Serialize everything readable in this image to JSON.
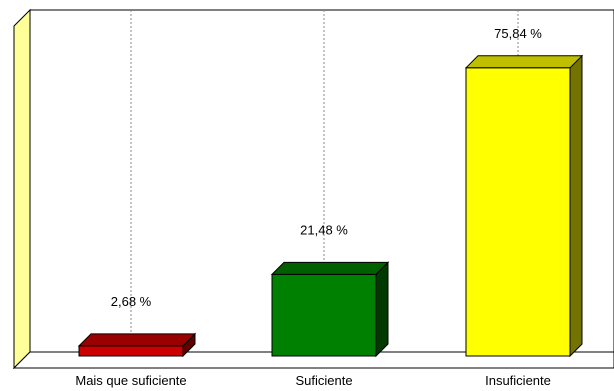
{
  "chart_data": {
    "type": "bar",
    "title": "",
    "xlabel": "",
    "ylabel": "",
    "ylim": [
      0,
      90
    ],
    "grid": "vertical-dotted",
    "legend": "none",
    "categories": [
      "Mais que suficiente",
      "Suficiente",
      "Insuficiente"
    ],
    "values": [
      2.68,
      21.48,
      75.84
    ],
    "value_labels": [
      "2,68 %",
      "21,48 %",
      "75,84 %"
    ],
    "colors": [
      "#cc0000",
      "#008000",
      "#ffff00"
    ]
  }
}
